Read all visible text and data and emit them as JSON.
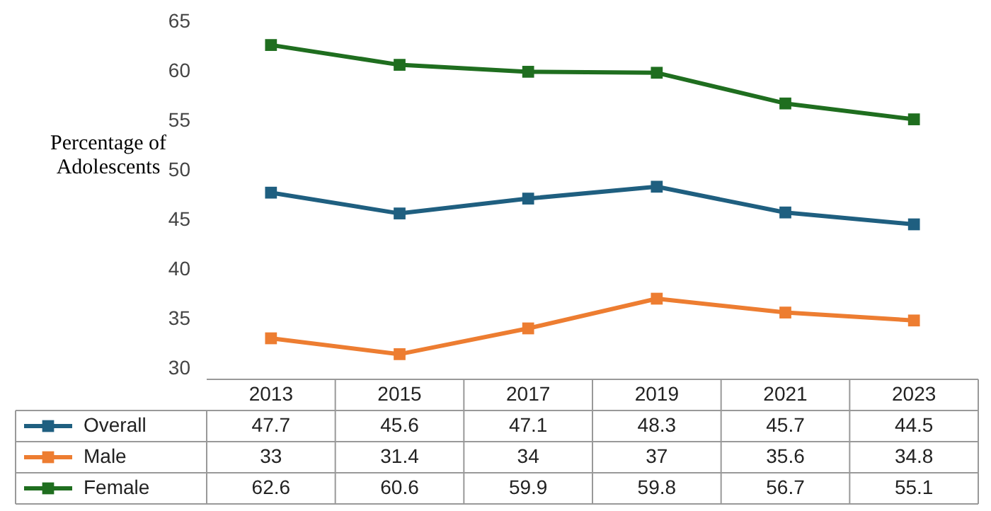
{
  "chart_data": {
    "type": "line",
    "ylabel": "Percentage of Adolescents",
    "categories": [
      "2013",
      "2015",
      "2017",
      "2019",
      "2021",
      "2023"
    ],
    "series": [
      {
        "name": "Overall",
        "color": "#1f5f80",
        "values": [
          47.7,
          45.6,
          47.1,
          48.3,
          45.7,
          44.5
        ]
      },
      {
        "name": "Male",
        "color": "#ed7d31",
        "values": [
          33,
          31.4,
          34,
          37,
          35.6,
          34.8
        ]
      },
      {
        "name": "Female",
        "color": "#1f6e1f",
        "values": [
          62.6,
          60.6,
          59.9,
          59.8,
          56.7,
          55.1
        ]
      }
    ],
    "ylim": [
      30,
      65
    ],
    "yticks": [
      30,
      35,
      40,
      45,
      50,
      55,
      60,
      65
    ],
    "grid": false,
    "legend": "bottom left",
    "marker": "square",
    "line_style": "solid",
    "data_labels": true
  }
}
